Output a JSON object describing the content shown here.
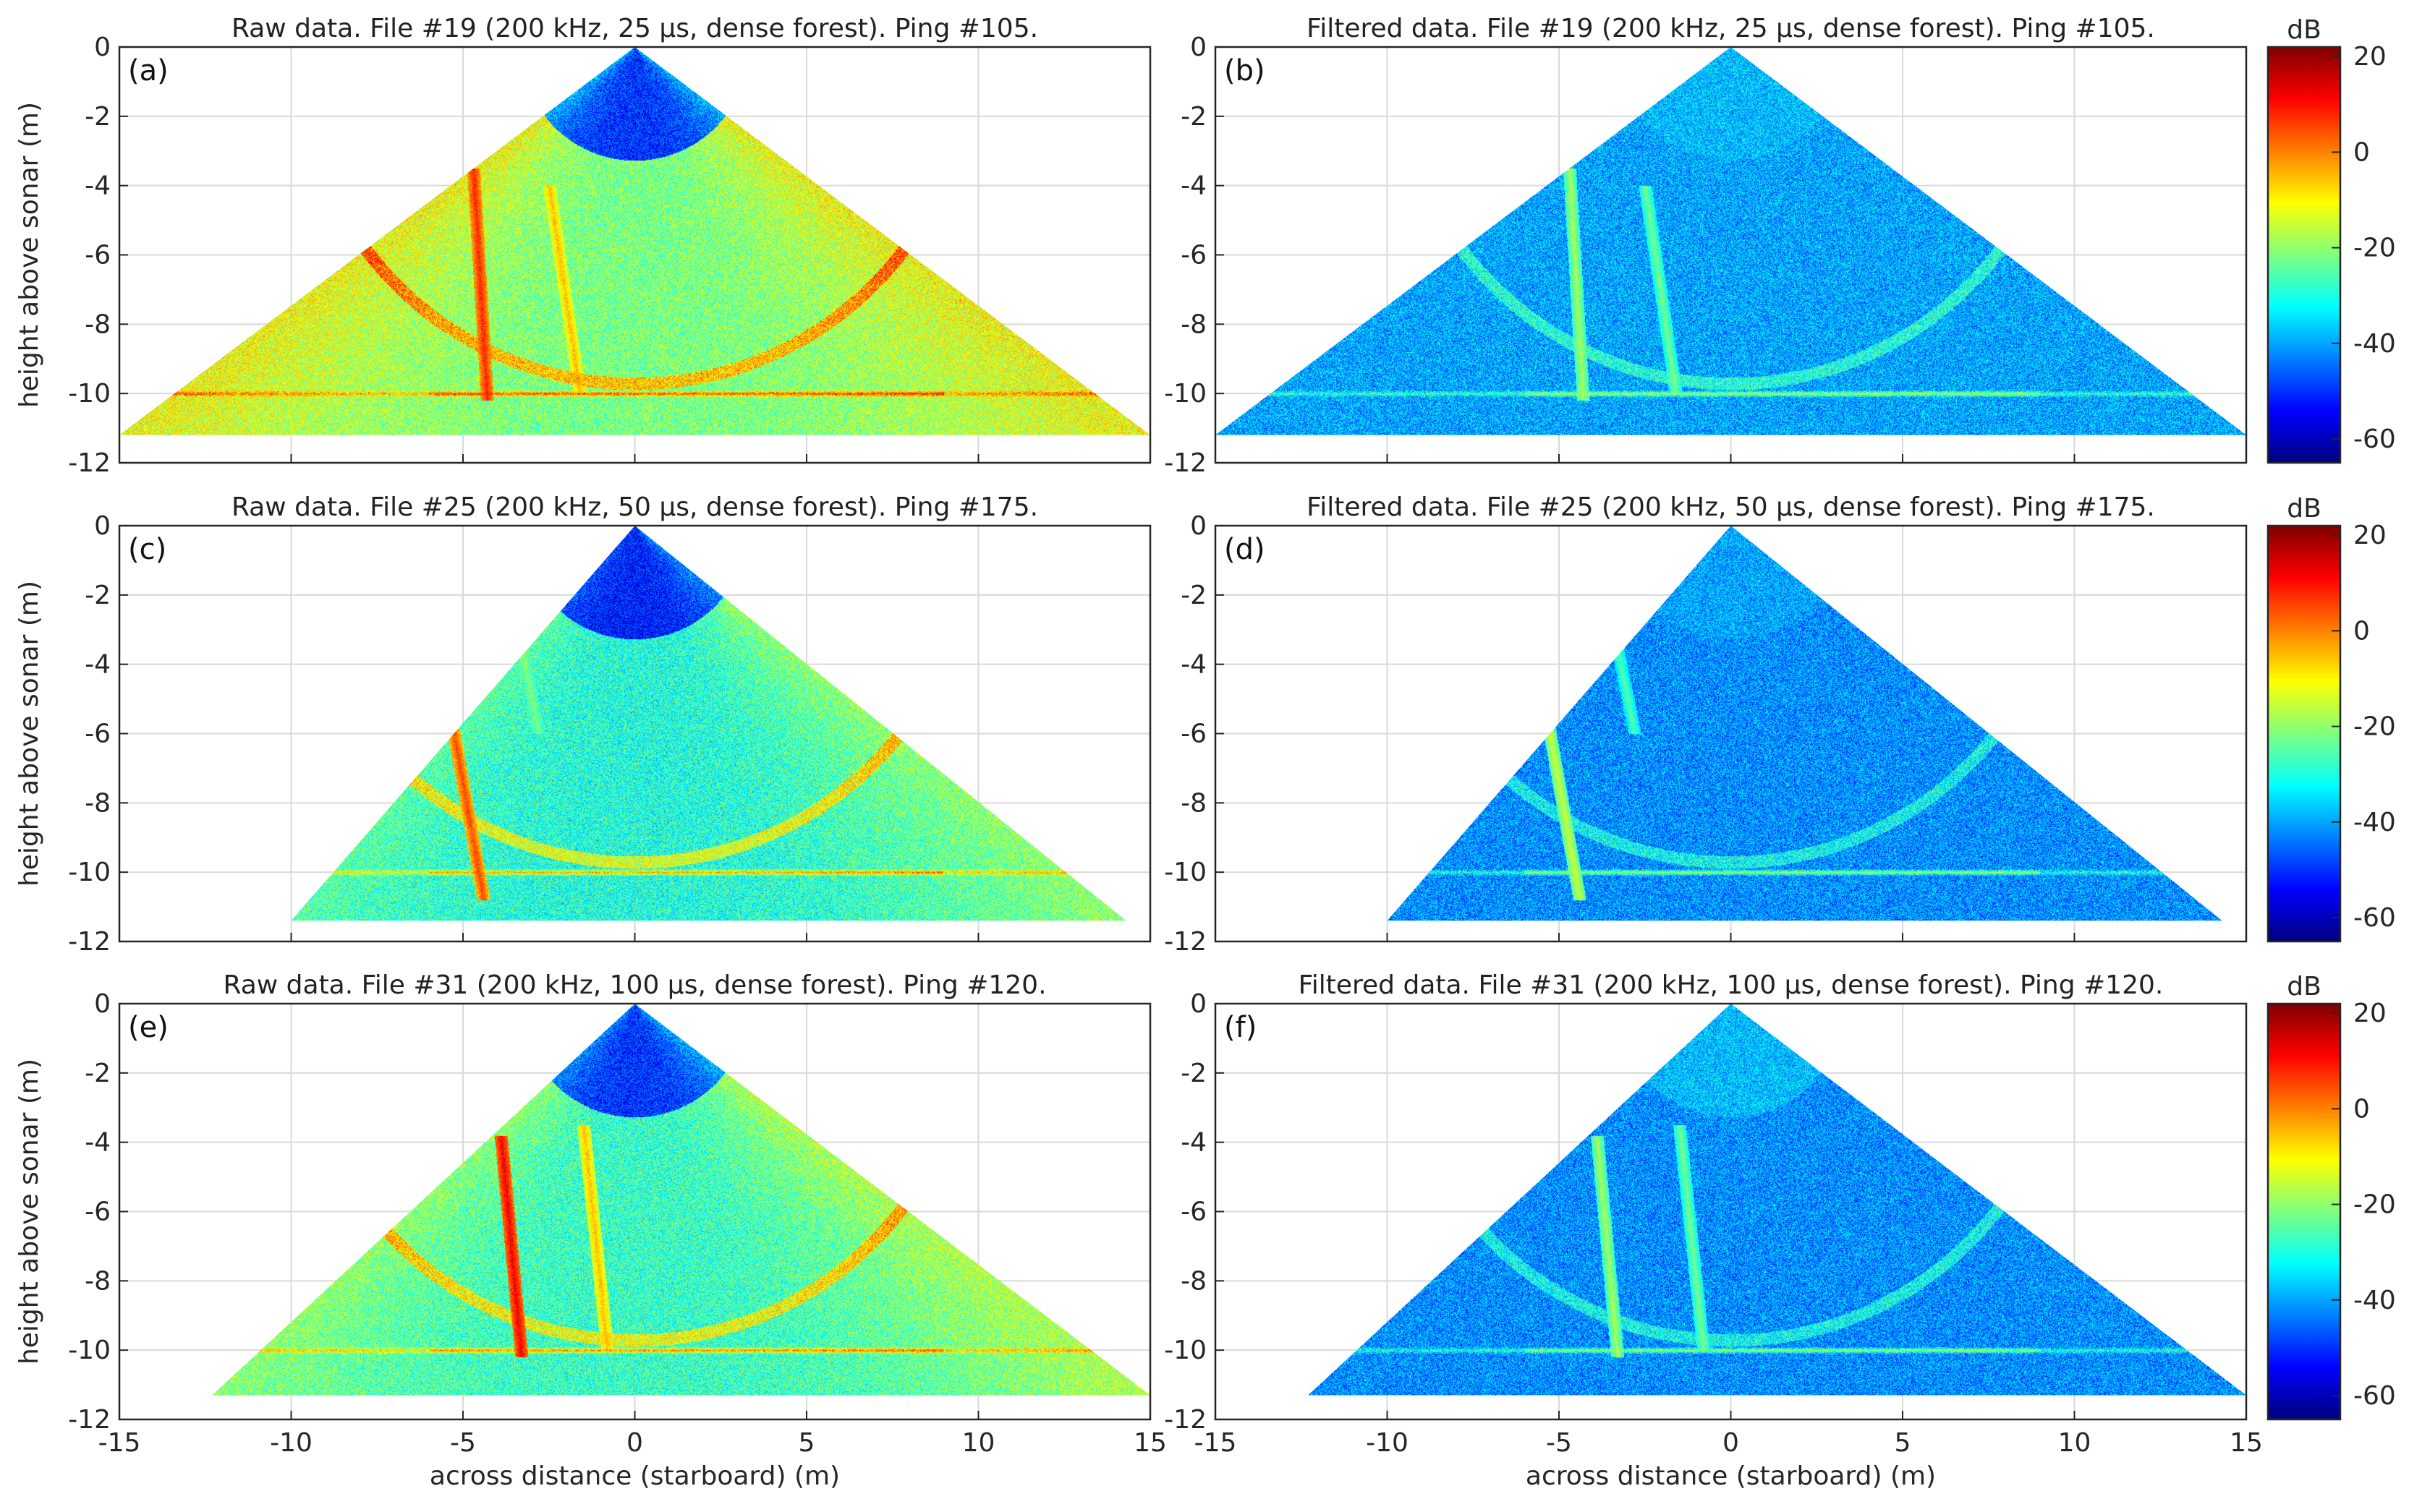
{
  "figure": {
    "colorbar": {
      "label": "dB",
      "ticks": [
        20,
        0,
        -20,
        -40,
        -60
      ],
      "range": [
        -65,
        22
      ],
      "colors": [
        "#00007f",
        "#0000ff",
        "#007fff",
        "#00ffff",
        "#7fff7f",
        "#ffff00",
        "#ff7f00",
        "#ff0000",
        "#7f0000"
      ]
    },
    "x_label": "across distance (starboard) (m)",
    "y_label": "height above sonar (m)"
  },
  "chart_data": [
    {
      "type": "heatmap",
      "panel": "(a)",
      "title": "Raw data. File #19 (200 kHz, 25 µs, dense forest). Ping #105.",
      "xlim": [
        -15,
        15
      ],
      "ylim": [
        -12,
        0
      ],
      "xticks": [
        -15,
        -10,
        -5,
        0,
        5,
        10,
        15
      ],
      "yticks": [
        0,
        -2,
        -4,
        -6,
        -8,
        -10,
        -12
      ],
      "fan_apex": [
        0,
        0
      ],
      "fan_bottom_y": -11.2,
      "fan_left_x": -15,
      "fan_right_x": 15,
      "bottom_line_y": -10,
      "level_db": -22,
      "near_field_db": -50,
      "features": [
        {
          "kind": "stem",
          "x_top": -4.7,
          "y_top": -3.5,
          "x_bottom": -4.3,
          "y_bottom": -10.2,
          "db": 8
        },
        {
          "kind": "stem",
          "x_top": -2.5,
          "y_top": -4.0,
          "x_bottom": -1.6,
          "y_bottom": -10.0,
          "db": -5
        }
      ]
    },
    {
      "type": "heatmap",
      "panel": "(b)",
      "title": "Filtered data. File #19 (200 kHz, 25 µs, dense forest). Ping #105.",
      "xlim": [
        -15,
        15
      ],
      "ylim": [
        -12,
        0
      ],
      "xticks": [
        -15,
        -10,
        -5,
        0,
        5,
        10,
        15
      ],
      "yticks": [
        0,
        -2,
        -4,
        -6,
        -8,
        -10,
        -12
      ],
      "fan_apex": [
        0,
        0
      ],
      "fan_bottom_y": -11.2,
      "fan_left_x": -15,
      "fan_right_x": 15,
      "bottom_line_y": -10,
      "level_db": -40,
      "near_field_db": -38,
      "features": [
        {
          "kind": "stem",
          "x_top": -4.7,
          "y_top": -3.5,
          "x_bottom": -4.3,
          "y_bottom": -10.2,
          "db": -18
        },
        {
          "kind": "stem",
          "x_top": -2.5,
          "y_top": -4.0,
          "x_bottom": -1.6,
          "y_bottom": -10.0,
          "db": -22
        }
      ]
    },
    {
      "type": "heatmap",
      "panel": "(c)",
      "title": "Raw data. File #25 (200 kHz, 50 µs, dense forest). Ping #175.",
      "xlim": [
        -15,
        15
      ],
      "ylim": [
        -12,
        0
      ],
      "xticks": [
        -15,
        -10,
        -5,
        0,
        5,
        10,
        15
      ],
      "yticks": [
        0,
        -2,
        -4,
        -6,
        -8,
        -10,
        -12
      ],
      "fan_apex": [
        0,
        0
      ],
      "fan_bottom_y": -11.4,
      "fan_left_x": -10,
      "fan_right_x": 14.3,
      "bottom_line_y": -10,
      "level_db": -30,
      "near_field_db": -52,
      "features": [
        {
          "kind": "stem",
          "x_top": -5.3,
          "y_top": -5.8,
          "x_bottom": -4.4,
          "y_bottom": -10.8,
          "db": 5
        },
        {
          "kind": "stem",
          "x_top": -3.3,
          "y_top": -3.5,
          "x_bottom": -2.8,
          "y_bottom": -6.0,
          "db": -22
        }
      ]
    },
    {
      "type": "heatmap",
      "panel": "(d)",
      "title": "Filtered data. File #25 (200 kHz, 50 µs, dense forest). Ping #175.",
      "xlim": [
        -15,
        15
      ],
      "ylim": [
        -12,
        0
      ],
      "xticks": [
        -15,
        -10,
        -5,
        0,
        5,
        10,
        15
      ],
      "yticks": [
        0,
        -2,
        -4,
        -6,
        -8,
        -10,
        -12
      ],
      "fan_apex": [
        0,
        0
      ],
      "fan_bottom_y": -11.4,
      "fan_left_x": -10,
      "fan_right_x": 14.3,
      "bottom_line_y": -10,
      "level_db": -42,
      "near_field_db": -40,
      "features": [
        {
          "kind": "stem",
          "x_top": -5.3,
          "y_top": -5.8,
          "x_bottom": -4.4,
          "y_bottom": -10.8,
          "db": -15
        },
        {
          "kind": "stem",
          "x_top": -3.3,
          "y_top": -3.5,
          "x_bottom": -2.8,
          "y_bottom": -6.0,
          "db": -25
        }
      ]
    },
    {
      "type": "heatmap",
      "panel": "(e)",
      "title": "Raw data. File #31 (200 kHz, 100 µs, dense forest). Ping #120.",
      "xlim": [
        -15,
        15
      ],
      "ylim": [
        -12,
        0
      ],
      "xticks": [
        -15,
        -10,
        -5,
        0,
        5,
        10,
        15
      ],
      "yticks": [
        0,
        -2,
        -4,
        -6,
        -8,
        -10,
        -12
      ],
      "fan_apex": [
        0,
        0
      ],
      "fan_bottom_y": -11.3,
      "fan_left_x": -12.3,
      "fan_right_x": 15,
      "bottom_line_y": -10,
      "level_db": -28,
      "near_field_db": -50,
      "features": [
        {
          "kind": "stem",
          "x_top": -3.9,
          "y_top": -3.8,
          "x_bottom": -3.3,
          "y_bottom": -10.2,
          "db": 12
        },
        {
          "kind": "stem",
          "x_top": -1.5,
          "y_top": -3.5,
          "x_bottom": -0.8,
          "y_bottom": -10.0,
          "db": -5
        }
      ]
    },
    {
      "type": "heatmap",
      "panel": "(f)",
      "title": "Filtered data. File #31 (200 kHz, 100 µs, dense forest). Ping #120.",
      "xlim": [
        -15,
        15
      ],
      "ylim": [
        -12,
        0
      ],
      "xticks": [
        -15,
        -10,
        -5,
        0,
        5,
        10,
        15
      ],
      "yticks": [
        0,
        -2,
        -4,
        -6,
        -8,
        -10,
        -12
      ],
      "fan_apex": [
        0,
        0
      ],
      "fan_bottom_y": -11.3,
      "fan_left_x": -12.3,
      "fan_right_x": 15,
      "bottom_line_y": -10,
      "level_db": -42,
      "near_field_db": -38,
      "features": [
        {
          "kind": "stem",
          "x_top": -3.9,
          "y_top": -3.8,
          "x_bottom": -3.3,
          "y_bottom": -10.2,
          "db": -18
        },
        {
          "kind": "stem",
          "x_top": -1.5,
          "y_top": -3.5,
          "x_bottom": -0.8,
          "y_bottom": -10.0,
          "db": -22
        }
      ]
    }
  ]
}
